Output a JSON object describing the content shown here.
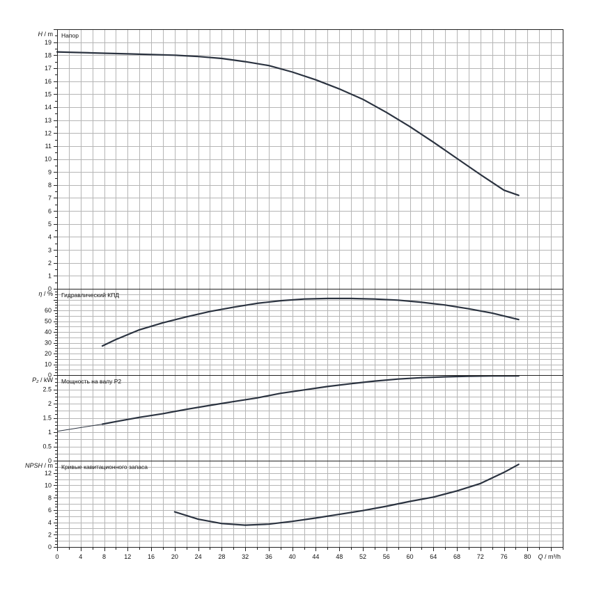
{
  "chart_data": [
    {
      "type": "line",
      "title": "Напор",
      "ylabel_symbol": "H",
      "ylabel_unit": "m",
      "ylim": [
        0,
        20
      ],
      "ytick_labels": [
        "0",
        "1",
        "2",
        "3",
        "4",
        "5",
        "6",
        "7",
        "8",
        "9",
        "10",
        "11",
        "12",
        "13",
        "14",
        "15",
        "16",
        "17",
        "18",
        "19"
      ],
      "grid": true,
      "series": [
        {
          "x": [
            0,
            8,
            12,
            16,
            20,
            24,
            28,
            32,
            36,
            40,
            44,
            48,
            52,
            56,
            60,
            64,
            68,
            72,
            76,
            78.5
          ],
          "values": [
            18.25,
            18.15,
            18.1,
            18.05,
            18.0,
            17.9,
            17.75,
            17.5,
            17.2,
            16.7,
            16.1,
            15.4,
            14.6,
            13.6,
            12.5,
            11.3,
            10.05,
            8.8,
            7.6,
            7.2
          ]
        }
      ]
    },
    {
      "type": "line",
      "title": "Гидравлический КПД",
      "ylabel_symbol": "η",
      "ylabel_unit": "%",
      "ylim": [
        0,
        80
      ],
      "ytick_labels": [
        "0",
        "10",
        "20",
        "30",
        "40",
        "50",
        "60"
      ],
      "grid": true,
      "series": [
        {
          "x": [
            7.7,
            10,
            14,
            18,
            22,
            26,
            30,
            34,
            38,
            42,
            46,
            50,
            54,
            58,
            62,
            66,
            70,
            74,
            78.5
          ],
          "values": [
            27,
            33,
            42,
            48.5,
            54,
            59,
            63,
            66.5,
            69,
            70.5,
            71,
            71,
            70.5,
            69.5,
            67.5,
            65,
            61.5,
            57.5,
            51.5
          ]
        }
      ]
    },
    {
      "type": "line",
      "title": "Мощность на валу P2",
      "ylabel_symbol": "P₂",
      "ylabel_unit": "kW",
      "ylim": [
        0,
        3
      ],
      "ytick_labels": [
        "0",
        "0.5",
        "1",
        "1.5",
        "2",
        "2.5"
      ],
      "grid": true,
      "series": [
        {
          "name": "thin",
          "x": [
            0,
            7.7
          ],
          "values": [
            1.03,
            1.28
          ]
        },
        {
          "name": "thick",
          "x": [
            7.7,
            10,
            14,
            18,
            22,
            26,
            30,
            34,
            38,
            42,
            46,
            50,
            54,
            58,
            62,
            66,
            70,
            74,
            78.5
          ],
          "values": [
            1.28,
            1.37,
            1.52,
            1.65,
            1.8,
            1.94,
            2.07,
            2.2,
            2.36,
            2.48,
            2.6,
            2.7,
            2.79,
            2.86,
            2.91,
            2.94,
            2.96,
            2.97,
            2.97
          ]
        }
      ]
    },
    {
      "type": "line",
      "title": "Кривые кавитационного запаса",
      "ylabel_symbol": "NPSH",
      "ylabel_unit": "m",
      "ylim": [
        0,
        14
      ],
      "ytick_labels": [
        "0",
        "2",
        "4",
        "6",
        "8",
        "10",
        "12"
      ],
      "grid": true,
      "series": [
        {
          "x": [
            20,
            24,
            28,
            32,
            36,
            40,
            44,
            48,
            52,
            56,
            60,
            64,
            68,
            72,
            76,
            78.5
          ],
          "values": [
            5.7,
            4.5,
            3.8,
            3.55,
            3.7,
            4.15,
            4.7,
            5.3,
            5.9,
            6.6,
            7.4,
            8.1,
            9.1,
            10.3,
            12.1,
            13.4
          ]
        }
      ]
    }
  ],
  "x_axis": {
    "symbol": "Q",
    "unit": "m³/h",
    "xlim": [
      0,
      86
    ],
    "tick_labels": [
      "0",
      "4",
      "8",
      "12",
      "16",
      "20",
      "24",
      "28",
      "32",
      "36",
      "40",
      "44",
      "48",
      "52",
      "56",
      "60",
      "64",
      "68",
      "72",
      "76",
      "80"
    ]
  }
}
